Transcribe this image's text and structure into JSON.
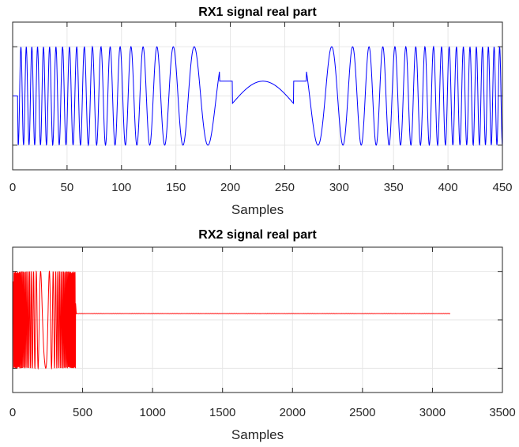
{
  "chart_data": [
    {
      "type": "line",
      "title": "RX1 signal real part",
      "xlabel": "Samples",
      "ylabel": "",
      "xlim": [
        0,
        450
      ],
      "ylim": [
        -1.5,
        1.5
      ],
      "xticks": [
        0,
        50,
        100,
        150,
        200,
        250,
        300,
        350,
        400,
        450
      ],
      "yticks": [
        -1,
        0,
        1
      ],
      "ytick_labels_visible": false,
      "grid": true,
      "color": "#0000ff",
      "signal": {
        "description_type": "chirp",
        "start_sample": 5,
        "end_sample": 450,
        "center_sample": 230,
        "amplitude": 1.0,
        "center_bump_peak": 0.3,
        "edge_period_samples": 5
      },
      "series": [
        {
          "x": [
            5,
            25,
            50,
            75,
            100,
            125,
            150,
            170,
            185,
            200,
            215,
            230,
            245,
            260,
            275,
            290,
            310,
            335,
            360,
            385,
            410,
            430,
            450
          ],
          "envelope": [
            1,
            1,
            1,
            1,
            1,
            1,
            1,
            1,
            1,
            -1.15,
            -0.3,
            0.3,
            -0.3,
            -1.15,
            1,
            1,
            1,
            1,
            1,
            1,
            1,
            1,
            1
          ]
        }
      ]
    },
    {
      "type": "line",
      "title": "RX2 signal real part",
      "xlabel": "Samples",
      "ylabel": "",
      "xlim": [
        0,
        3500
      ],
      "ylim": [
        -1.5,
        1.5
      ],
      "xticks": [
        0,
        500,
        1000,
        1500,
        2000,
        2500,
        3000,
        3500
      ],
      "yticks": [
        -1,
        0,
        1
      ],
      "ytick_labels_visible": false,
      "grid": true,
      "color": "#ff0000",
      "signal": {
        "burst_start_sample": 5,
        "burst_end_sample": 450,
        "tail_end_sample": 3130,
        "tail_level": 0.13,
        "amplitude": 1.0
      },
      "series": [
        {
          "x": [
            0,
            450,
            460,
            3130
          ],
          "y_level": [
            0,
            0,
            0.13,
            0.13
          ]
        }
      ]
    }
  ]
}
